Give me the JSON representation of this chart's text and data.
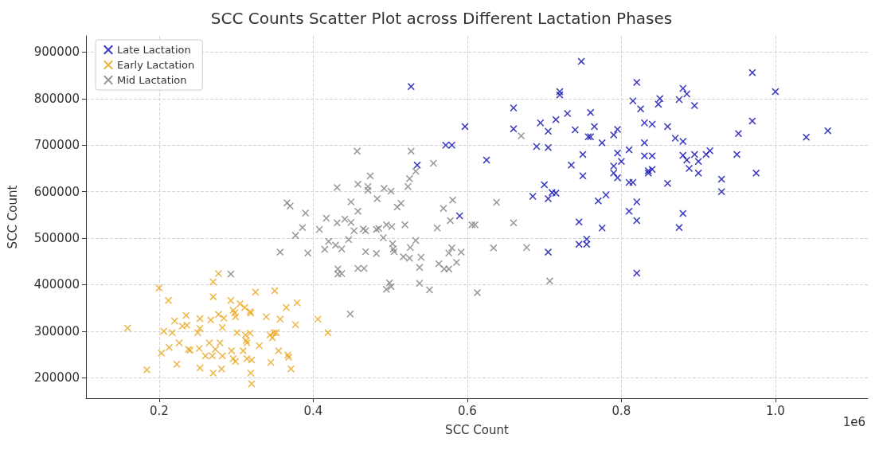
{
  "chart_data": {
    "type": "scatter",
    "title": "SCC Counts Scatter Plot across Different Lactation Phases",
    "xlabel": "SCC Count",
    "ylabel": "SCC Count",
    "annotations": [
      "1e6"
    ],
    "xlim": [
      0.105,
      1.12
    ],
    "xticks": [
      0.2,
      0.4,
      0.6,
      0.8,
      {
        "value": 1,
        "label": "1.0"
      }
    ],
    "ylim": [
      156000,
      935000
    ],
    "yticks": [
      200000,
      300000,
      400000,
      500000,
      600000,
      700000,
      800000,
      900000
    ],
    "grid": true,
    "legend": "top left",
    "marker": "cross",
    "series": [
      {
        "name": "Late Lactation",
        "color": "#0a0ab0",
        "x": [
          0.527,
          0.748,
          0.72,
          0.72,
          0.82,
          0.88,
          0.885,
          0.97,
          1.0,
          0.66,
          0.73,
          0.76,
          0.715,
          0.825,
          0.815,
          0.85,
          0.848,
          0.875,
          0.895,
          0.597,
          0.66,
          0.695,
          0.705,
          0.74,
          0.765,
          0.79,
          0.795,
          0.83,
          0.84,
          0.86,
          0.87,
          0.97,
          0.952,
          0.572,
          0.58,
          0.625,
          0.69,
          0.705,
          0.75,
          0.757,
          0.76,
          0.775,
          0.795,
          0.8,
          0.81,
          0.83,
          0.83,
          0.84,
          0.88,
          0.88,
          0.885,
          0.888,
          0.895,
          0.9,
          0.91,
          0.915,
          0.95,
          1.04,
          1.068,
          0.535,
          0.735,
          0.75,
          0.79,
          0.79,
          0.795,
          0.81,
          0.815,
          0.835,
          0.835,
          0.84,
          0.86,
          0.9,
          0.93,
          0.93,
          0.975,
          0.7,
          0.705,
          0.71,
          0.715,
          0.685,
          0.77,
          0.78,
          0.82,
          0.59,
          0.745,
          0.81,
          0.82,
          0.775,
          0.875,
          0.88,
          0.705,
          0.745,
          0.755,
          0.755,
          0.82
        ],
        "values": [
          826000,
          880000,
          815000,
          808000,
          835000,
          822000,
          810000,
          856000,
          815000,
          780000,
          768000,
          770000,
          755000,
          778000,
          795000,
          800000,
          788000,
          798000,
          785000,
          740000,
          735000,
          748000,
          730000,
          733000,
          740000,
          722000,
          734000,
          748000,
          745000,
          740000,
          715000,
          752000,
          725000,
          700000,
          700000,
          668000,
          697000,
          695000,
          680000,
          718000,
          718000,
          705000,
          683000,
          665000,
          690000,
          705000,
          677000,
          677000,
          708000,
          678000,
          668000,
          650000,
          680000,
          665000,
          680000,
          688000,
          680000,
          717000,
          731000,
          657000,
          657000,
          634000,
          655000,
          640000,
          630000,
          620000,
          620000,
          645000,
          640000,
          648000,
          618000,
          640000,
          627000,
          600000,
          640000,
          615000,
          585000,
          598000,
          597000,
          590000,
          580000,
          593000,
          578000,
          548000,
          535000,
          558000,
          538000,
          522000,
          523000,
          553000,
          470000,
          487000,
          487000,
          498000,
          425000
        ]
      },
      {
        "name": "Early Lactation",
        "color": "#e9a51a",
        "x": [
          0.159,
          0.184,
          0.2,
          0.212,
          0.203,
          0.206,
          0.217,
          0.22,
          0.213,
          0.223,
          0.226,
          0.23,
          0.235,
          0.236,
          0.238,
          0.24,
          0.253,
          0.25,
          0.253,
          0.252,
          0.253,
          0.267,
          0.27,
          0.27,
          0.277,
          0.265,
          0.269,
          0.26,
          0.27,
          0.277,
          0.279,
          0.282,
          0.284,
          0.281,
          0.282,
          0.273,
          0.293,
          0.296,
          0.298,
          0.299,
          0.294,
          0.296,
          0.299,
          0.301,
          0.305,
          0.311,
          0.312,
          0.314,
          0.318,
          0.319,
          0.313,
          0.318,
          0.309,
          0.314,
          0.319,
          0.32,
          0.32,
          0.325,
          0.33,
          0.339,
          0.344,
          0.349,
          0.352,
          0.35,
          0.347,
          0.357,
          0.365,
          0.355,
          0.345,
          0.367,
          0.368,
          0.371,
          0.377,
          0.379,
          0.406,
          0.419
        ],
        "values": [
          307000,
          217000,
          393000,
          366000,
          253000,
          300000,
          297000,
          322000,
          265000,
          229000,
          275000,
          311000,
          334000,
          313000,
          261000,
          259000,
          327000,
          297000,
          306000,
          263000,
          221000,
          324000,
          406000,
          374000,
          424000,
          275000,
          247000,
          247000,
          210000,
          336000,
          275000,
          308000,
          328000,
          219000,
          247000,
          261000,
          366000,
          345000,
          339000,
          331000,
          258000,
          241000,
          235000,
          297000,
          359000,
          351000,
          292000,
          275000,
          342000,
          339000,
          280000,
          296000,
          258000,
          241000,
          210000,
          187000,
          238000,
          384000,
          269000,
          331000,
          292000,
          297000,
          297000,
          387000,
          286000,
          326000,
          351000,
          258000,
          233000,
          249000,
          244000,
          219000,
          314000,
          361000,
          326000,
          297000
        ]
      },
      {
        "name": "Mid Lactation",
        "color": "#7f7f7f",
        "x": [
          0.457,
          0.527,
          0.556,
          0.533,
          0.525,
          0.523,
          0.474,
          0.431,
          0.458,
          0.471,
          0.471,
          0.492,
          0.501,
          0.483,
          0.366,
          0.37,
          0.39,
          0.449,
          0.458,
          0.509,
          0.514,
          0.569,
          0.581,
          0.638,
          0.417,
          0.431,
          0.441,
          0.449,
          0.386,
          0.408,
          0.377,
          0.453,
          0.465,
          0.468,
          0.482,
          0.485,
          0.495,
          0.502,
          0.519,
          0.561,
          0.578,
          0.606,
          0.61,
          0.66,
          0.446,
          0.42,
          0.429,
          0.437,
          0.415,
          0.357,
          0.393,
          0.468,
          0.482,
          0.491,
          0.503,
          0.504,
          0.505,
          0.526,
          0.533,
          0.517,
          0.525,
          0.54,
          0.538,
          0.563,
          0.57,
          0.576,
          0.586,
          0.58,
          0.576,
          0.592,
          0.634,
          0.432,
          0.432,
          0.437,
          0.458,
          0.466,
          0.499,
          0.495,
          0.501,
          0.538,
          0.551,
          0.613,
          0.448,
          0.67,
          0.677,
          0.707,
          0.293
        ],
        "values": [
          687000,
          687000,
          661000,
          644000,
          628000,
          611000,
          634000,
          609000,
          616000,
          611000,
          603000,
          607000,
          601000,
          585000,
          576000,
          569000,
          554000,
          578000,
          558000,
          567000,
          575000,
          564000,
          582000,
          577000,
          543000,
          533000,
          541000,
          534000,
          523000,
          519000,
          506000,
          516000,
          520000,
          516000,
          519000,
          521000,
          529000,
          525000,
          529000,
          522000,
          538000,
          529000,
          529000,
          533000,
          497000,
          493000,
          485000,
          477000,
          476000,
          470000,
          468000,
          471000,
          467000,
          501000,
          488000,
          477000,
          471000,
          480000,
          495000,
          460000,
          457000,
          459000,
          437000,
          445000,
          434000,
          434000,
          448000,
          479000,
          468000,
          470000,
          479000,
          434000,
          423000,
          424000,
          435000,
          435000,
          404000,
          390000,
          396000,
          403000,
          389000,
          383000,
          337000,
          720000,
          480000,
          408000,
          423000
        ]
      }
    ]
  }
}
